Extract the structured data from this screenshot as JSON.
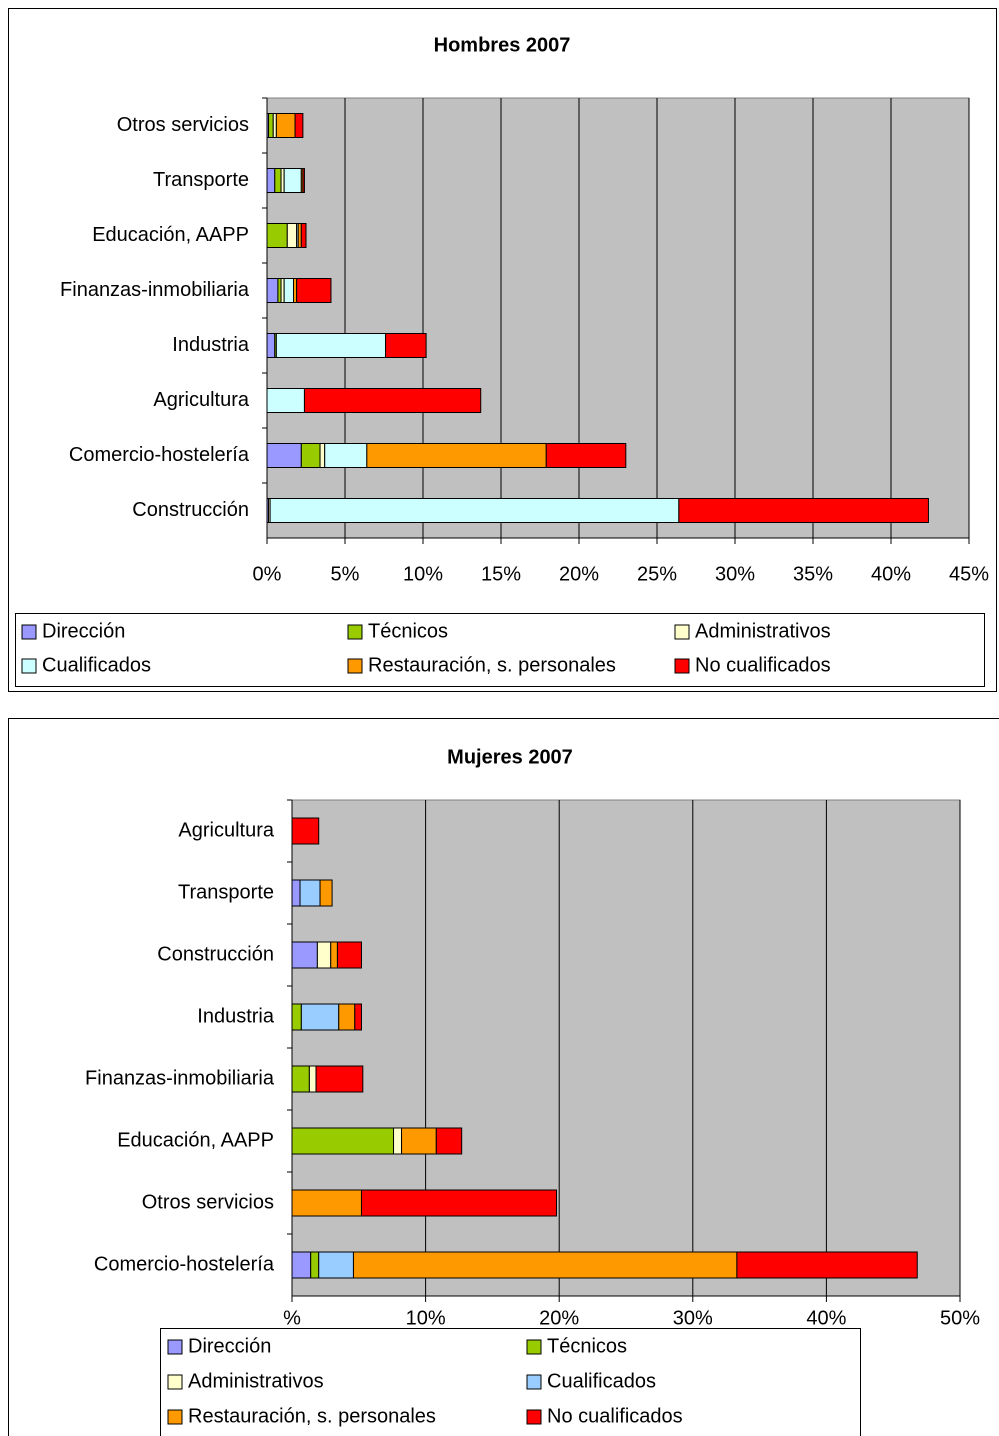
{
  "chart_data": [
    {
      "type": "bar",
      "orientation": "horizontal",
      "stacked": true,
      "title": "Hombres 2007",
      "categories": [
        "Otros servicios",
        "Transporte",
        "Educación, AAPP",
        "Finanzas-inmobiliaria",
        "Industria",
        "Agricultura",
        "Comercio-hostelería",
        "Construcción"
      ],
      "series": [
        {
          "name": "Dirección",
          "color": "#9999FF",
          "values": [
            0.1,
            0.5,
            0,
            0.7,
            0.5,
            0,
            2.2,
            0.1
          ]
        },
        {
          "name": "Técnicos",
          "color": "#99CC00",
          "values": [
            0.3,
            0.4,
            1.3,
            0.2,
            0.1,
            0,
            1.2,
            0
          ]
        },
        {
          "name": "Administrativos",
          "color": "#FFFFCC",
          "values": [
            0.2,
            0.2,
            0.6,
            0.2,
            0,
            0,
            0.3,
            0.1
          ]
        },
        {
          "name": "Cualificados",
          "color": "#CCFFFF",
          "values": [
            0,
            1.1,
            0.1,
            0.6,
            7.0,
            2.4,
            2.7,
            26.2
          ]
        },
        {
          "name": "Restauración, s. personales",
          "color": "#FF9900",
          "values": [
            1.2,
            0.1,
            0.2,
            0.2,
            0,
            0,
            11.5,
            0
          ]
        },
        {
          "name": "No cualificados",
          "color": "#FF0000",
          "values": [
            0.5,
            0.1,
            0.3,
            2.2,
            2.6,
            11.3,
            5.1,
            16.0
          ]
        }
      ],
      "xlim": [
        0,
        45
      ],
      "xticks": [
        {
          "value": 0,
          "label": "0%"
        },
        {
          "value": 5,
          "label": "5%"
        },
        {
          "value": 10,
          "label": "10%"
        },
        {
          "value": 15,
          "label": "15%"
        },
        {
          "value": 20,
          "label": "20%"
        },
        {
          "value": 25,
          "label": "25%"
        },
        {
          "value": 30,
          "label": "30%"
        },
        {
          "value": 35,
          "label": "35%"
        },
        {
          "value": 40,
          "label": "40%"
        },
        {
          "value": 45,
          "label": "45%"
        }
      ],
      "grid": true
    },
    {
      "type": "bar",
      "orientation": "horizontal",
      "stacked": true,
      "title": "Mujeres 2007",
      "categories": [
        "Agricultura",
        "Transporte",
        "Construcción",
        "Industria",
        "Finanzas-inmobiliaria",
        "Educación, AAPP",
        "Otros servicios",
        "Comercio-hostelería"
      ],
      "series": [
        {
          "name": "Dirección",
          "color": "#9999FF",
          "values": [
            0,
            0.6,
            1.9,
            0,
            0,
            0,
            0,
            1.4
          ]
        },
        {
          "name": "Técnicos",
          "color": "#99CC00",
          "values": [
            0,
            0,
            0,
            0.7,
            1.3,
            7.6,
            0,
            0.6
          ]
        },
        {
          "name": "Administrativos",
          "color": "#FFFFCC",
          "values": [
            0,
            0,
            1.0,
            0,
            0.5,
            0.6,
            0,
            0
          ]
        },
        {
          "name": "Cualificados",
          "color": "#99CCFF",
          "values": [
            0,
            1.5,
            0,
            2.8,
            0,
            0,
            0,
            2.6
          ]
        },
        {
          "name": "Restauración, s. personales",
          "color": "#FF9900",
          "values": [
            0,
            0.9,
            0.5,
            1.2,
            0,
            2.6,
            5.2,
            28.7
          ]
        },
        {
          "name": "No cualificados",
          "color": "#FF0000",
          "values": [
            2.0,
            0,
            1.8,
            0.5,
            3.5,
            1.9,
            14.6,
            13.5
          ]
        }
      ],
      "xlim": [
        0,
        50
      ],
      "xticks": [
        {
          "value": 0,
          "label": "%"
        },
        {
          "value": 10,
          "label": "10%"
        },
        {
          "value": 20,
          "label": "20%"
        },
        {
          "value": 30,
          "label": "30%"
        },
        {
          "value": 40,
          "label": "40%"
        },
        {
          "value": 50,
          "label": "50%"
        }
      ],
      "grid": true
    }
  ]
}
